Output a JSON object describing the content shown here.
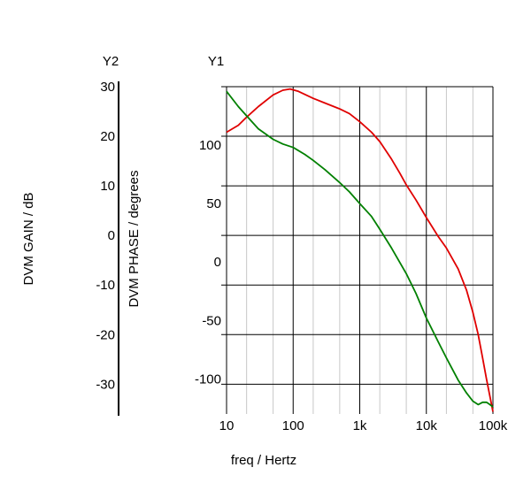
{
  "chart_data": {
    "type": "line",
    "x_scale": "log",
    "y1_label": "Y1",
    "y2_label": "Y2",
    "xlabel": "freq / Hertz",
    "ylabel_left": "DVM GAIN / dB",
    "ylabel_phase": "DVM PHASE / degrees",
    "xlim": [
      10,
      100000
    ],
    "x_ticks": [
      10,
      100,
      1000,
      10000,
      100000
    ],
    "x_tick_labels": [
      "10",
      "100",
      "1k",
      "10k",
      "100k"
    ],
    "gain_axis": {
      "ylim": [
        -36,
        30
      ],
      "ticks": [
        30,
        20,
        10,
        0,
        -10,
        -20,
        -30
      ],
      "tick_labels": [
        "30",
        "20",
        "10",
        "0",
        "-10",
        "-20",
        "-30"
      ]
    },
    "phase_axis": {
      "ylim": [
        -130,
        150
      ],
      "ticks": [
        100,
        50,
        0,
        -50,
        -100
      ],
      "tick_labels": [
        "100",
        "50",
        "0",
        "-50",
        "-100"
      ]
    },
    "grid": true,
    "series": [
      {
        "color": "#e00000",
        "axis": "phase",
        "points": [
          [
            10,
            111
          ],
          [
            15,
            117
          ],
          [
            20,
            124
          ],
          [
            30,
            133
          ],
          [
            50,
            143
          ],
          [
            70,
            147
          ],
          [
            90,
            148
          ],
          [
            120,
            146
          ],
          [
            200,
            140
          ],
          [
            300,
            136
          ],
          [
            500,
            131
          ],
          [
            700,
            127
          ],
          [
            1000,
            120
          ],
          [
            1500,
            111
          ],
          [
            2000,
            103
          ],
          [
            3000,
            88
          ],
          [
            4000,
            76
          ],
          [
            5000,
            66
          ],
          [
            7000,
            53
          ],
          [
            10000,
            38
          ],
          [
            15000,
            22
          ],
          [
            20000,
            12
          ],
          [
            30000,
            -6
          ],
          [
            40000,
            -24
          ],
          [
            50000,
            -43
          ],
          [
            60000,
            -62
          ],
          [
            70000,
            -82
          ],
          [
            80000,
            -100
          ],
          [
            90000,
            -115
          ],
          [
            100000,
            -128
          ]
        ]
      },
      {
        "color": "#008000",
        "axis": "phase",
        "points": [
          [
            10,
            146
          ],
          [
            15,
            133
          ],
          [
            20,
            125
          ],
          [
            30,
            114
          ],
          [
            50,
            105
          ],
          [
            70,
            101
          ],
          [
            100,
            98
          ],
          [
            150,
            92
          ],
          [
            200,
            87
          ],
          [
            300,
            79
          ],
          [
            500,
            68
          ],
          [
            700,
            60
          ],
          [
            1000,
            50
          ],
          [
            1500,
            39
          ],
          [
            2000,
            28
          ],
          [
            3000,
            12
          ],
          [
            5000,
            -10
          ],
          [
            7000,
            -27
          ],
          [
            10000,
            -48
          ],
          [
            15000,
            -68
          ],
          [
            20000,
            -82
          ],
          [
            30000,
            -101
          ],
          [
            40000,
            -112
          ],
          [
            50000,
            -119
          ],
          [
            60000,
            -122
          ],
          [
            70000,
            -120
          ],
          [
            80000,
            -120
          ],
          [
            90000,
            -122
          ],
          [
            100000,
            -124
          ]
        ]
      }
    ]
  }
}
